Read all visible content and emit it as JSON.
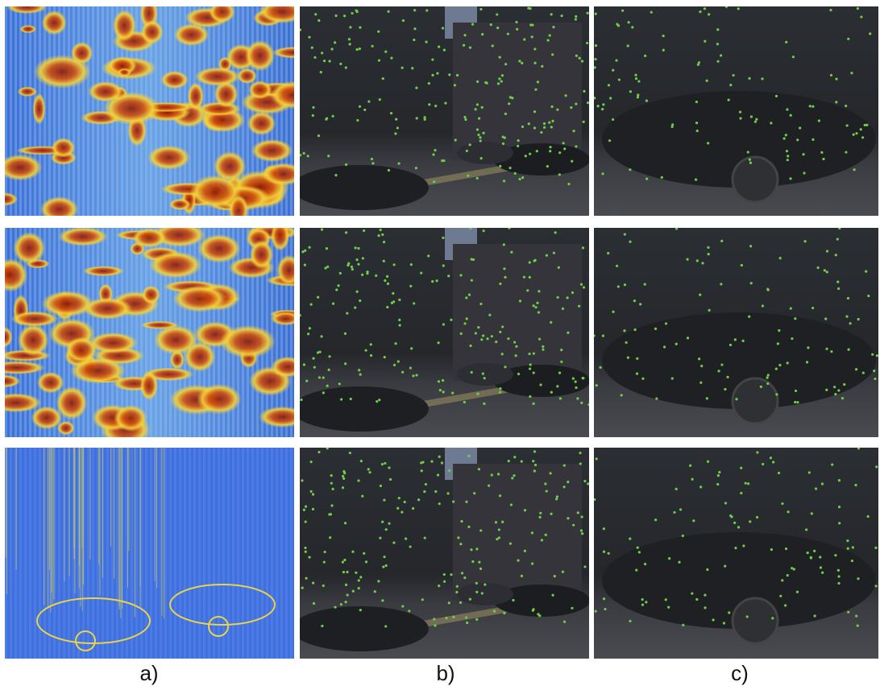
{
  "labels": [
    "a)",
    "b)",
    "c)"
  ]
}
